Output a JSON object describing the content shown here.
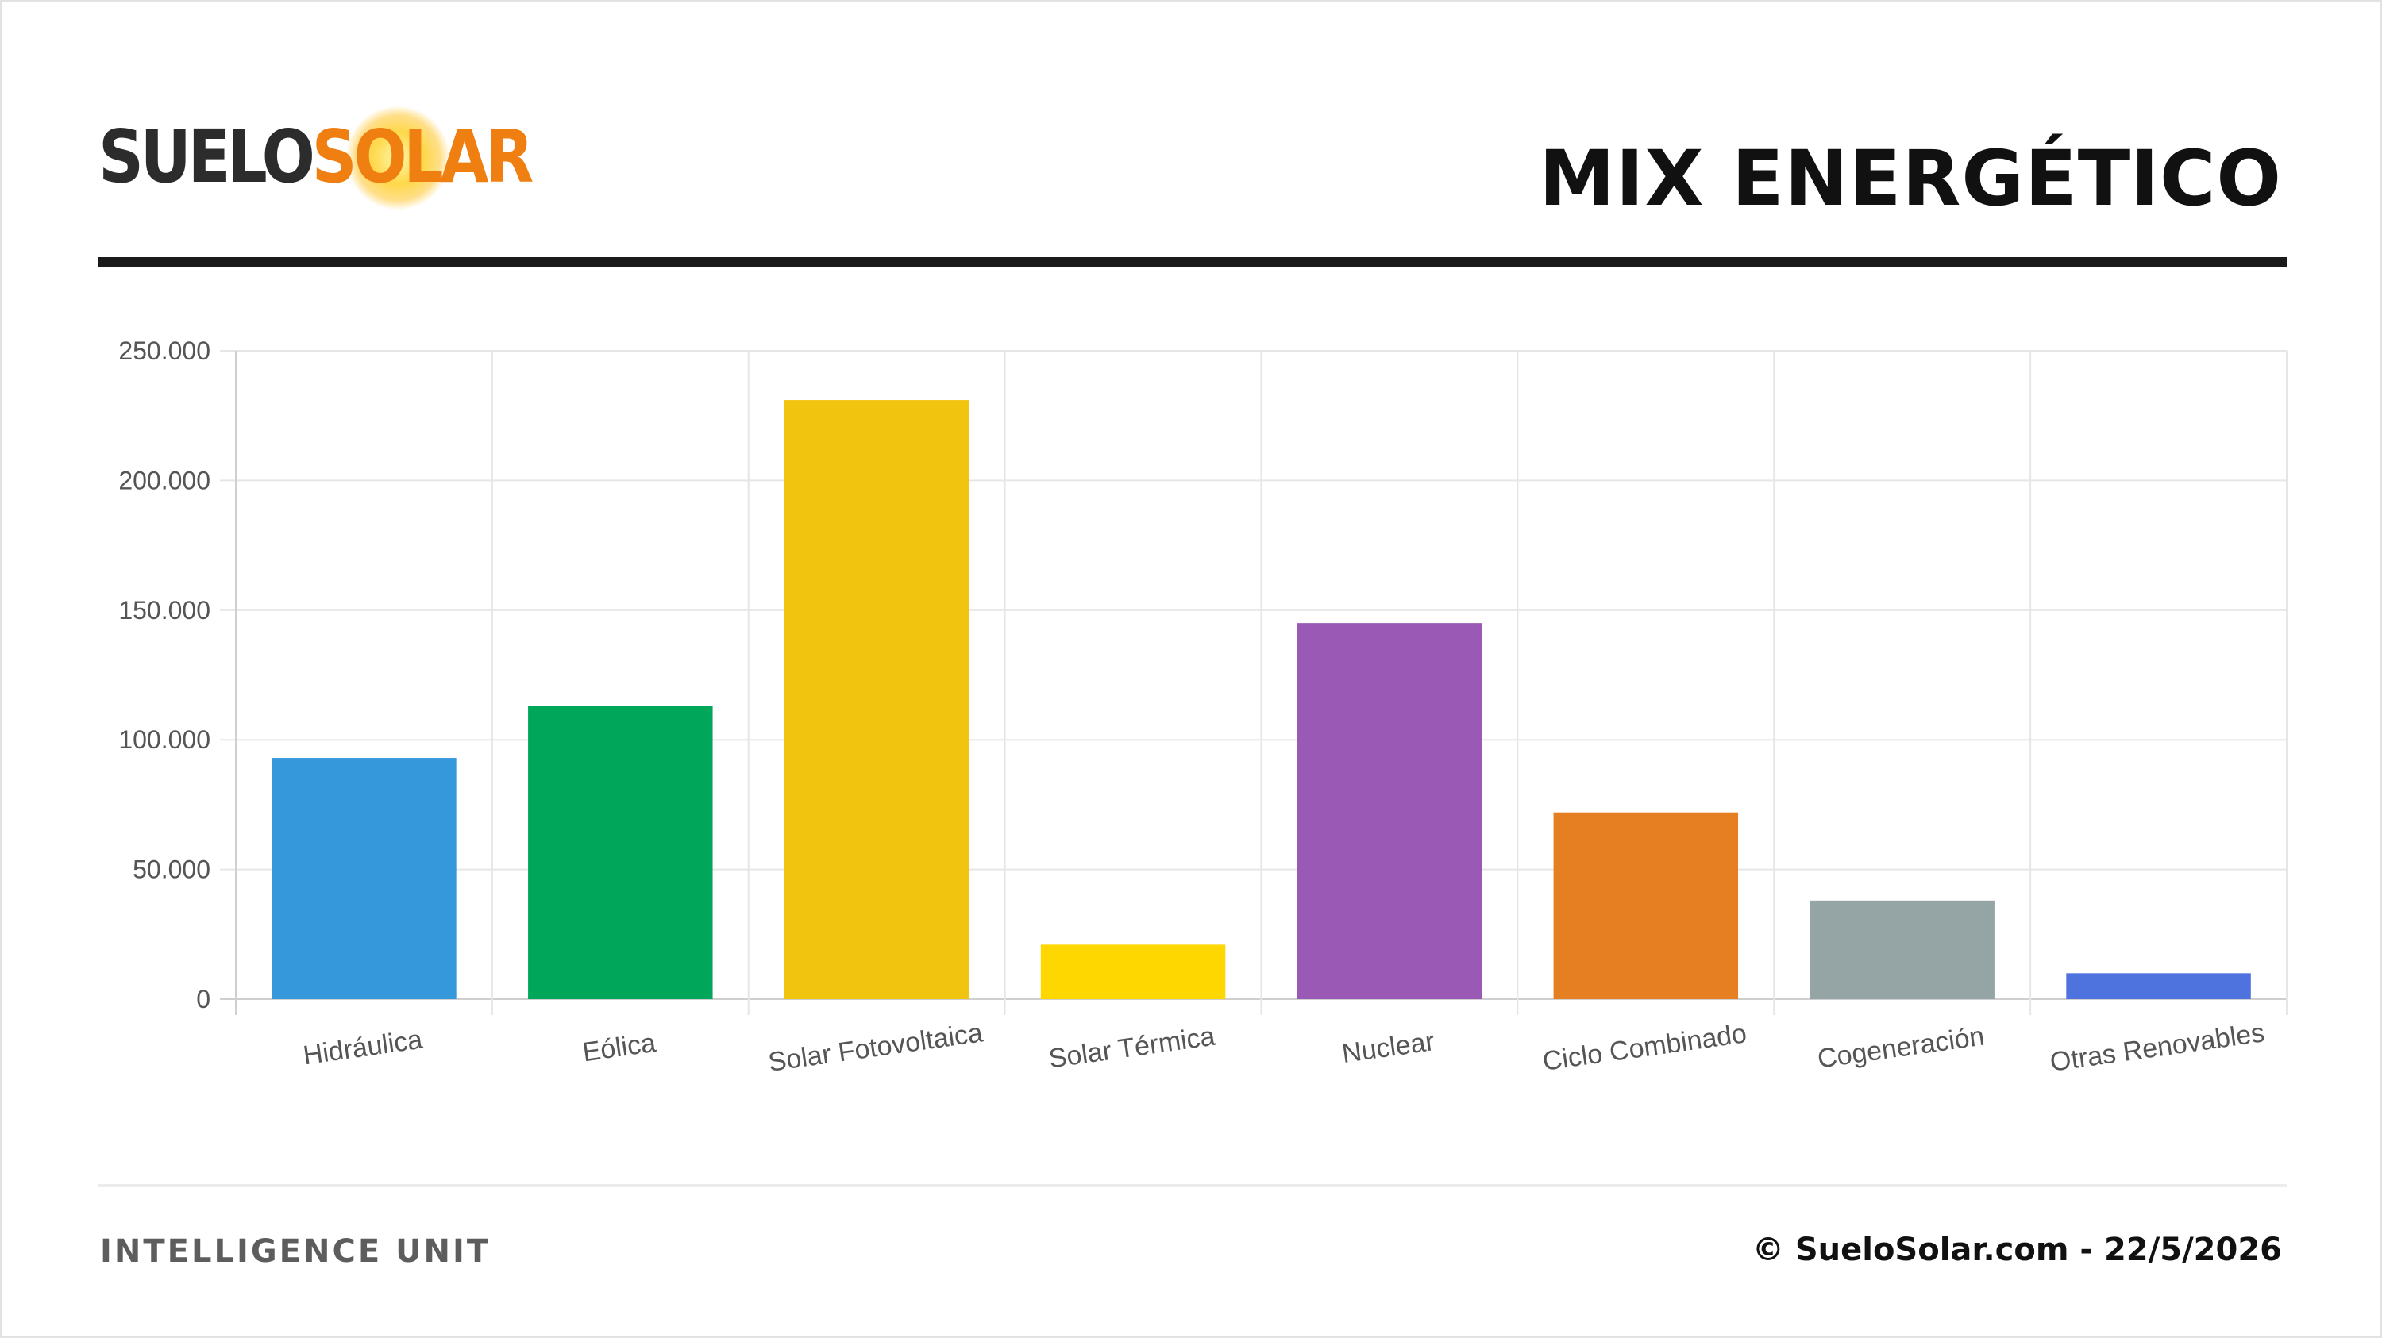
{
  "brand": {
    "logo_text": "SUELOSOLAR",
    "logo_part1": "SUELO",
    "logo_part2": "SOLAR",
    "colors": {
      "dark": "#2c2c2c",
      "orange": "#f07f12",
      "sun": "#ffd84a"
    }
  },
  "header": {
    "title": "MIX ENERGÉTICO"
  },
  "footer": {
    "left_text": "INTELLIGENCE UNIT",
    "right_text": "© SueloSolar.com - 22/5/2026"
  },
  "chart_data": {
    "type": "bar",
    "title": "",
    "xlabel": "",
    "ylabel": "",
    "ylim": [
      0,
      250000
    ],
    "yticks": [
      {
        "value": 0,
        "label": "0"
      },
      {
        "value": 50000,
        "label": "50.000"
      },
      {
        "value": 100000,
        "label": "100.000"
      },
      {
        "value": 150000,
        "label": "150.000"
      },
      {
        "value": 200000,
        "label": "200.000"
      },
      {
        "value": 250000,
        "label": "250.000"
      }
    ],
    "grid": true,
    "legend": "none",
    "categories": [
      "Hidráulica",
      "Eólica",
      "Solar Fotovoltaica",
      "Solar Térmica",
      "Nuclear",
      "Ciclo Combinado",
      "Cogeneración",
      "Otras Renovables"
    ],
    "values": [
      93000,
      113000,
      231000,
      21000,
      145000,
      72000,
      38000,
      10000
    ],
    "colors": [
      "#3498db",
      "#00a65a",
      "#f1c40f",
      "#ffd700",
      "#9b59b6",
      "#e67e22",
      "#95a5a6",
      "#4e73df"
    ]
  }
}
